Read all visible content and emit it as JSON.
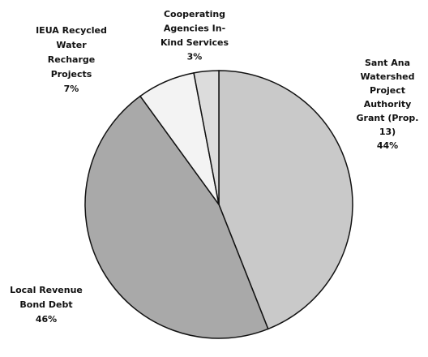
{
  "chart_data": {
    "type": "pie",
    "categories": [
      [
        "Sant Ana",
        "Watershed",
        "Project",
        "Authority",
        "Grant (Prop.",
        "13)"
      ],
      [
        "Local Revenue",
        "Bond Debt"
      ],
      [
        "IEUA Recycled",
        "Water",
        "Recharge",
        "Projects"
      ],
      [
        "Cooperating",
        "Agencies In-",
        "Kind Services"
      ]
    ],
    "values": [
      44,
      46,
      7,
      3
    ],
    "value_labels": [
      "44%",
      "46%",
      "7%",
      "3%"
    ],
    "colors": [
      "#c9c9c9",
      "#a9a9a9",
      "#f3f3f3",
      "#dcdcdc"
    ]
  }
}
